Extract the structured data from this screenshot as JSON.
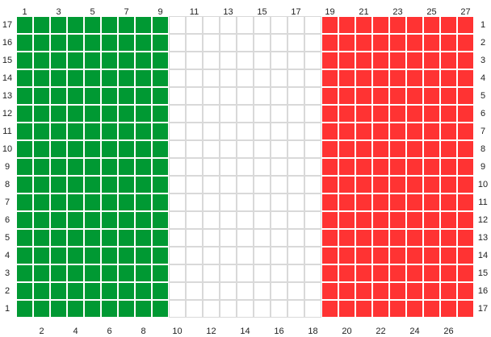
{
  "grid": {
    "columns": 27,
    "rows": 17,
    "colors": {
      "green": "#009933",
      "white": "#ffffff",
      "red": "#ff3333",
      "gridline_on_color": "#ffffff",
      "gridline_on_white": "#d9d9d9"
    },
    "bands": [
      {
        "name": "green",
        "from_col": 1,
        "to_col": 9
      },
      {
        "name": "white",
        "from_col": 10,
        "to_col": 18
      },
      {
        "name": "red",
        "from_col": 19,
        "to_col": 27
      }
    ]
  },
  "labels": {
    "top": [
      "1",
      "3",
      "5",
      "7",
      "9",
      "11",
      "13",
      "15",
      "17",
      "19",
      "21",
      "23",
      "25",
      "27"
    ],
    "bottom": [
      "2",
      "4",
      "6",
      "8",
      "10",
      "12",
      "14",
      "16",
      "18",
      "20",
      "22",
      "24",
      "26"
    ],
    "left": [
      "17",
      "16",
      "15",
      "14",
      "13",
      "12",
      "11",
      "10",
      "9",
      "8",
      "7",
      "6",
      "5",
      "4",
      "3",
      "2",
      "1"
    ],
    "right": [
      "1",
      "2",
      "3",
      "4",
      "5",
      "6",
      "7",
      "8",
      "9",
      "10",
      "11",
      "12",
      "13",
      "14",
      "15",
      "16",
      "17"
    ]
  }
}
